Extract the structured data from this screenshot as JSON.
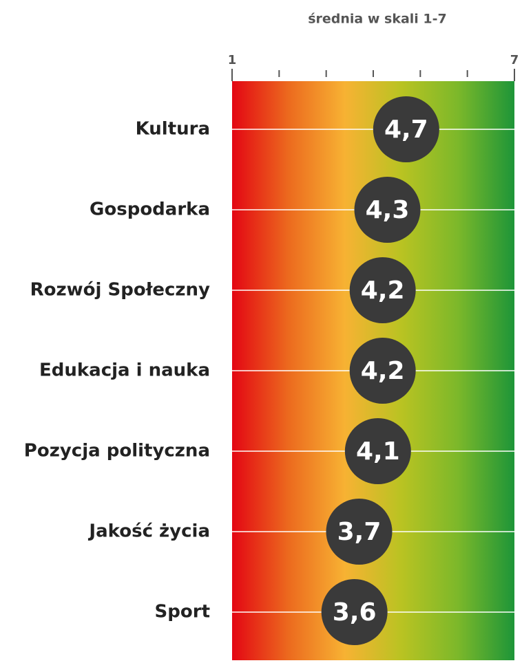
{
  "chart_data": {
    "type": "dot",
    "title": "średnia w skali 1-7",
    "categories": [
      "Kultura",
      "Gospodarka",
      "Rozwój Społeczny",
      "Edukacja i nauka",
      "Pozycja polityczna",
      "Jakość życia",
      "Sport"
    ],
    "values": [
      4.7,
      4.3,
      4.2,
      4.2,
      4.1,
      3.7,
      3.6
    ],
    "value_labels": [
      "4,7",
      "4,3",
      "4,2",
      "4,2",
      "4,1",
      "3,7",
      "3,6"
    ],
    "color": "#3a3a3a",
    "xlim": [
      1,
      7
    ],
    "xticks": [
      1,
      7
    ],
    "minor_xticks": [
      2,
      3,
      4,
      5,
      6
    ],
    "gradient": [
      "#e30613",
      "#ec6a1e",
      "#f7b233",
      "#b9c322",
      "#7cb82a",
      "#1d9538"
    ]
  }
}
